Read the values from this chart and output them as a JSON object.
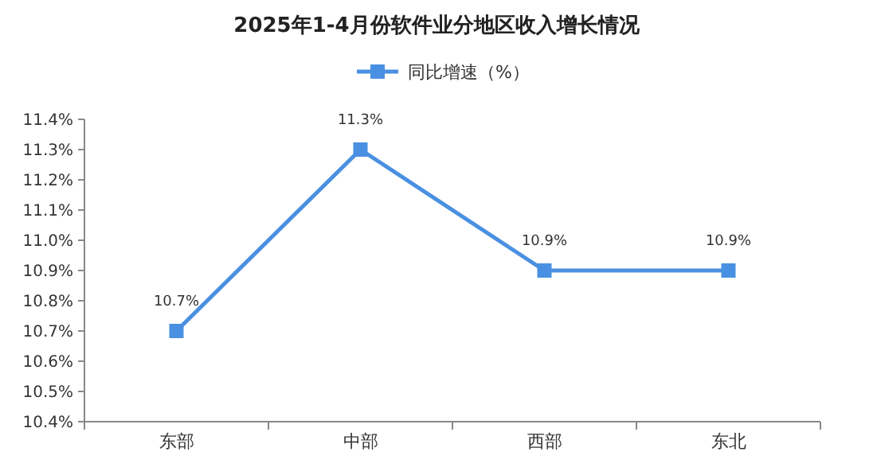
{
  "chart_data": {
    "type": "line",
    "title": "2025年1-4月份软件业分地区收入增长情况",
    "categories": [
      "东部",
      "中部",
      "西部",
      "东北"
    ],
    "series": [
      {
        "name": "同比增速（%）",
        "color": "#4a90e2",
        "values": [
          10.7,
          11.3,
          10.9,
          10.9
        ],
        "value_labels": [
          "10.7%",
          "11.3%",
          "10.9%",
          "10.9%"
        ]
      }
    ],
    "ylim": [
      10.4,
      11.4
    ],
    "yticks": [
      {
        "value": 10.4,
        "label": "10.4%"
      },
      {
        "value": 10.5,
        "label": "10.5%"
      },
      {
        "value": 10.6,
        "label": "10.6%"
      },
      {
        "value": 10.7,
        "label": "10.7%"
      },
      {
        "value": 10.8,
        "label": "10.8%"
      },
      {
        "value": 10.9,
        "label": "10.9%"
      },
      {
        "value": 11.0,
        "label": "11.0%"
      },
      {
        "value": 11.1,
        "label": "11.1%"
      },
      {
        "value": 11.2,
        "label": "11.2%"
      },
      {
        "value": 11.3,
        "label": "11.3%"
      },
      {
        "value": 11.4,
        "label": "11.4%"
      }
    ],
    "marker": "square",
    "line_style": "solid",
    "legend": "top",
    "grid": false
  }
}
